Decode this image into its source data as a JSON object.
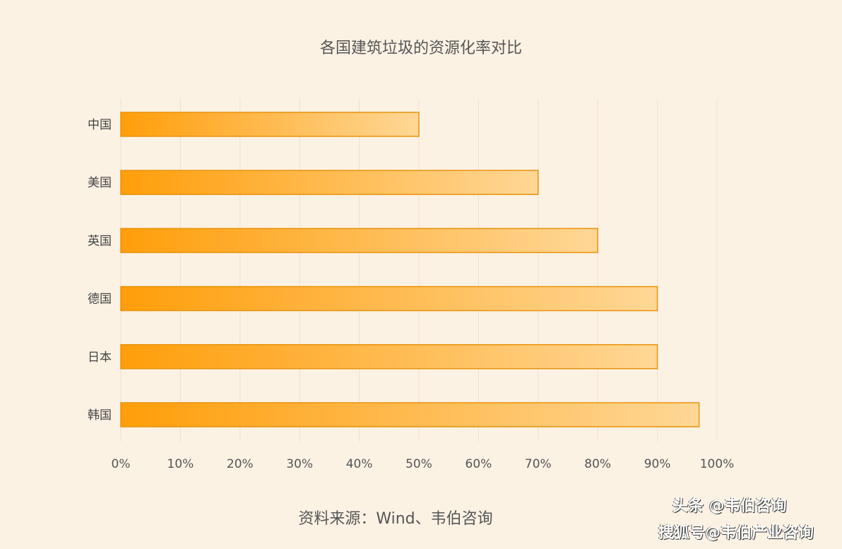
{
  "chart_data": {
    "type": "bar",
    "orientation": "horizontal",
    "title": "各国建筑垃圾的资源化率对比",
    "categories": [
      "中国",
      "美国",
      "英国",
      "德国",
      "日本",
      "韩国"
    ],
    "values": [
      50,
      70,
      80,
      90,
      90,
      97
    ],
    "xlim": [
      0,
      100
    ],
    "xticks": [
      "0%",
      "10%",
      "20%",
      "30%",
      "40%",
      "50%",
      "60%",
      "70%",
      "80%",
      "90%",
      "100%"
    ],
    "grid": true,
    "colors": {
      "bar_start": "#ff9e0a",
      "bar_end": "#ffd796",
      "bar_border": "#e8920a",
      "background": "#fcf2e4"
    }
  },
  "source": "资料来源：Wind、韦伯咨询",
  "watermarks": [
    "头条 @韦伯咨询",
    "搜狐号@韦伯产业咨询"
  ]
}
